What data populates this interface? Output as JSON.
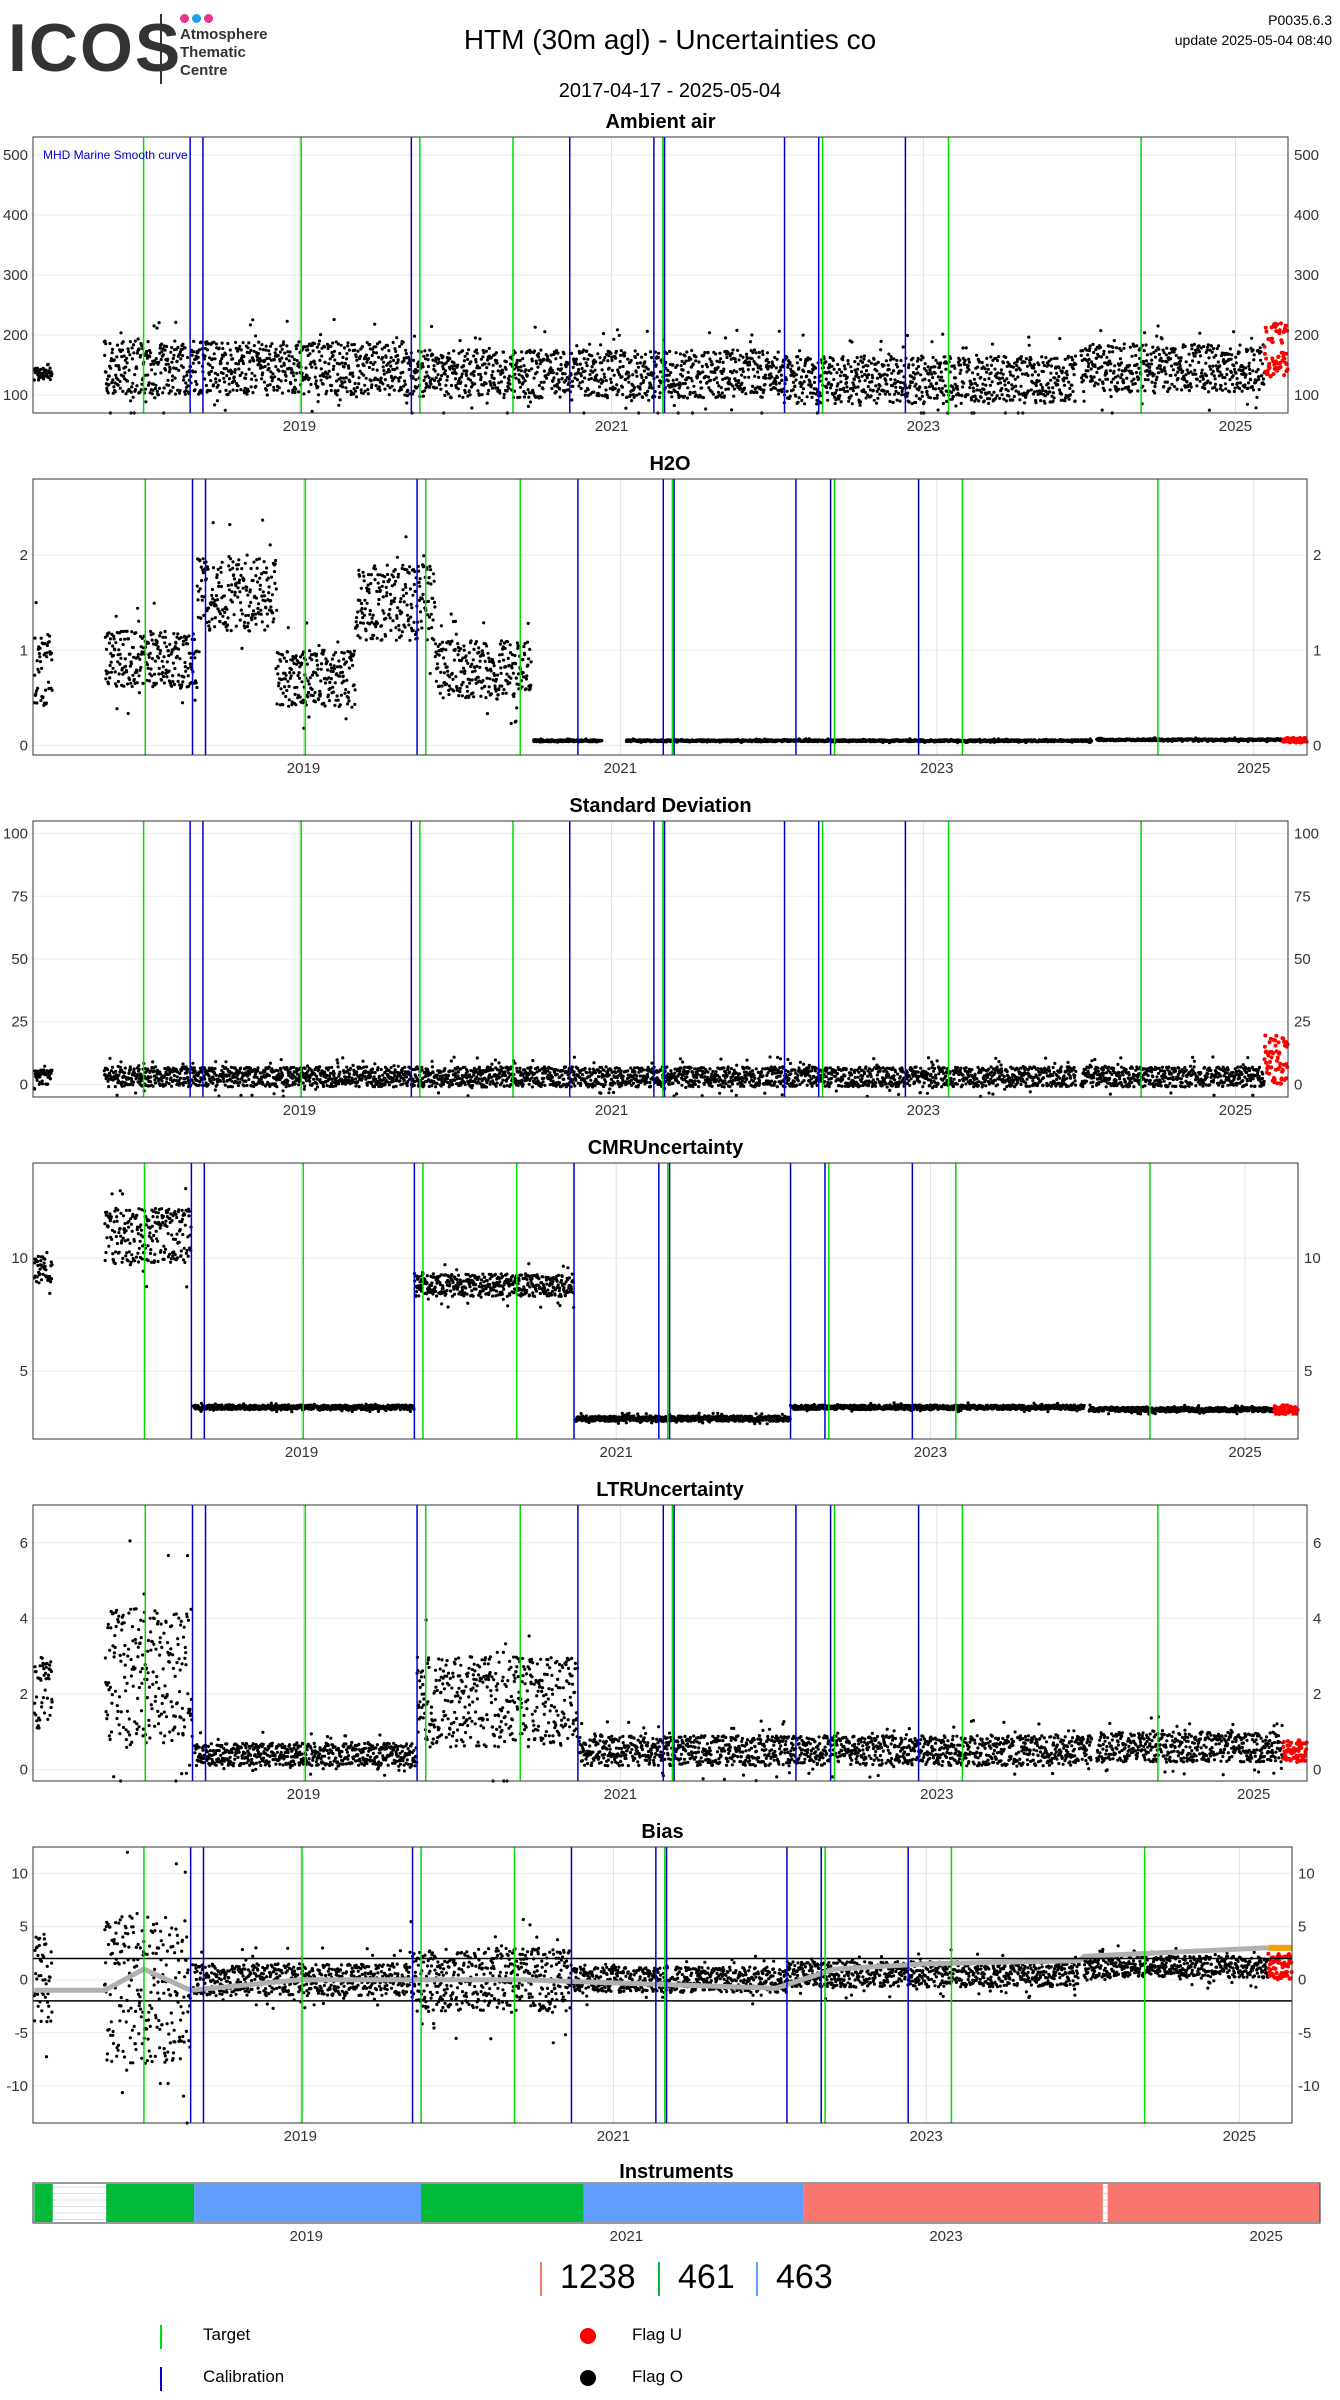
{
  "logo": {
    "word": "ICOS",
    "line1": "Atmosphere",
    "line2": "Thematic",
    "line3": "Centre",
    "dot_colors": [
      "#e8368f",
      "#1aa3e8",
      "#e8368f"
    ]
  },
  "header": {
    "title": "HTM  (30m agl) - Uncertainties co",
    "dates": "2017-04-17 - 2025-05-04",
    "version": "P0035.6.3",
    "update": "update  2025-05-04 08:40"
  },
  "colors": {
    "target": "#00dd00",
    "calibration": "#0000cc",
    "flag_u": "#ff0000",
    "flag_o": "#000000",
    "smooth": "#b0b0b0",
    "flag_u_smooth": "#f0a000",
    "inst_red": "#f8766d",
    "inst_green": "#00ba38",
    "inst_blue": "#619cff"
  },
  "chart_data": {
    "type": "scatter",
    "x_ticks": [
      "2019",
      "2021",
      "2023",
      "2025"
    ],
    "x_range": [
      "2017-04-17",
      "2025-05-04"
    ],
    "target_dates": [
      "2018-01-01",
      "2019-01-05",
      "2019-10-10",
      "2020-05-15",
      "2021-05-01",
      "2022-05-10",
      "2023-03-01",
      "2024-05-25"
    ],
    "calibration_dates": [
      "2018-04-20",
      "2018-05-20",
      "2019-09-20",
      "2020-09-25",
      "2021-04-10",
      "2021-05-05",
      "2022-02-10",
      "2022-05-01",
      "2022-11-20"
    ],
    "panels": [
      {
        "title": "Ambient air",
        "ylim": [
          70,
          530
        ],
        "yticks": [
          100,
          200,
          300,
          400,
          500
        ],
        "annotation": "MHD Marine Smooth curve",
        "segments": [
          {
            "from": "2017-04-20",
            "to": "2017-06-01",
            "base": 135,
            "amp": 10
          },
          {
            "from": "2017-10-01",
            "to": "2019-09-10",
            "base": 145,
            "amp": 45
          },
          {
            "from": "2019-09-10",
            "to": "2022-02-01",
            "base": 135,
            "amp": 40
          },
          {
            "from": "2022-02-01",
            "to": "2023-12-25",
            "base": 125,
            "amp": 40
          },
          {
            "from": "2024-01-05",
            "to": "2025-03-10",
            "base": 145,
            "amp": 40
          }
        ],
        "flag_u": {
          "from": "2025-03-10",
          "to": "2025-05-04",
          "low": 130,
          "high": 220
        }
      },
      {
        "title": "H2O",
        "ylim": [
          -0.1,
          2.8
        ],
        "yticks": [
          0,
          1,
          2
        ],
        "segments": [
          {
            "from": "2017-04-20",
            "to": "2017-06-01",
            "base": 0.8,
            "amp": 0.4
          },
          {
            "from": "2017-10-01",
            "to": "2018-05-01",
            "base": 0.9,
            "amp": 0.3
          },
          {
            "from": "2018-05-01",
            "to": "2018-11-01",
            "base": 1.6,
            "amp": 0.4
          },
          {
            "from": "2018-11-01",
            "to": "2019-05-01",
            "base": 0.7,
            "amp": 0.3
          },
          {
            "from": "2019-05-01",
            "to": "2019-11-01",
            "base": 1.5,
            "amp": 0.4
          },
          {
            "from": "2019-11-01",
            "to": "2020-06-10",
            "base": 0.8,
            "amp": 0.3
          },
          {
            "from": "2020-06-15",
            "to": "2020-11-20",
            "base": 0.05,
            "amp": 0.01
          },
          {
            "from": "2021-01-15",
            "to": "2023-12-25",
            "base": 0.05,
            "amp": 0.01
          },
          {
            "from": "2024-01-05",
            "to": "2025-03-10",
            "base": 0.06,
            "amp": 0.01
          }
        ],
        "flag_u": {
          "from": "2025-03-10",
          "to": "2025-05-04",
          "low": 0.03,
          "high": 0.08
        }
      },
      {
        "title": "Standard Deviation",
        "ylim": [
          -5,
          105
        ],
        "yticks": [
          0,
          25,
          50,
          75,
          100
        ],
        "segments": [
          {
            "from": "2017-04-20",
            "to": "2017-06-01",
            "base": 3,
            "amp": 3
          },
          {
            "from": "2017-10-01",
            "to": "2023-12-25",
            "base": 3,
            "amp": 4
          },
          {
            "from": "2024-01-05",
            "to": "2025-03-10",
            "base": 3,
            "amp": 4
          }
        ],
        "flag_u": {
          "from": "2025-03-10",
          "to": "2025-05-04",
          "low": 0,
          "high": 20
        }
      },
      {
        "title": "CMRUncertainty",
        "ylim": [
          2,
          14.2
        ],
        "yticks": [
          5,
          10
        ],
        "segments": [
          {
            "from": "2017-04-20",
            "to": "2017-06-01",
            "base": 9.5,
            "amp": 0.6
          },
          {
            "from": "2017-10-01",
            "to": "2018-04-20",
            "base": 11,
            "amp": 1.2
          },
          {
            "from": "2018-04-25",
            "to": "2019-09-20",
            "base": 3.4,
            "amp": 0.1
          },
          {
            "from": "2019-09-20",
            "to": "2020-09-25",
            "base": 8.8,
            "amp": 0.5
          },
          {
            "from": "2020-09-28",
            "to": "2022-02-10",
            "base": 2.9,
            "amp": 0.12
          },
          {
            "from": "2022-02-10",
            "to": "2023-12-25",
            "base": 3.4,
            "amp": 0.1
          },
          {
            "from": "2024-01-05",
            "to": "2025-03-10",
            "base": 3.3,
            "amp": 0.1
          }
        ],
        "flag_u": {
          "from": "2025-03-10",
          "to": "2025-05-04",
          "low": 3.1,
          "high": 3.5
        }
      },
      {
        "title": "LTRUncertainty",
        "ylim": [
          -0.3,
          7
        ],
        "yticks": [
          0,
          2,
          4,
          6
        ],
        "segments": [
          {
            "from": "2017-04-20",
            "to": "2017-06-01",
            "base": 2,
            "amp": 1
          },
          {
            "from": "2017-10-01",
            "to": "2018-04-20",
            "base": 2.5,
            "amp": 1.8
          },
          {
            "from": "2018-04-25",
            "to": "2019-09-20",
            "base": 0.4,
            "amp": 0.3
          },
          {
            "from": "2019-09-20",
            "to": "2020-09-25",
            "base": 1.8,
            "amp": 1.2
          },
          {
            "from": "2020-09-28",
            "to": "2023-12-25",
            "base": 0.5,
            "amp": 0.4
          },
          {
            "from": "2024-01-05",
            "to": "2025-03-10",
            "base": 0.6,
            "amp": 0.4
          }
        ],
        "flag_u": {
          "from": "2025-03-10",
          "to": "2025-05-04",
          "low": 0.2,
          "high": 0.8
        }
      },
      {
        "title": "Bias",
        "ylim": [
          -13.5,
          12.5
        ],
        "yticks": [
          -10,
          -5,
          0,
          5,
          10
        ],
        "hlines": [
          -2,
          2
        ],
        "segments": [
          {
            "from": "2017-04-20",
            "to": "2017-06-01",
            "base": 0,
            "amp": 4
          },
          {
            "from": "2017-10-01",
            "to": "2018-04-20",
            "base": -1,
            "amp": 7
          },
          {
            "from": "2018-04-25",
            "to": "2019-09-10",
            "base": 0,
            "amp": 1.5
          },
          {
            "from": "2019-09-10",
            "to": "2020-09-25",
            "base": 0,
            "amp": 3
          },
          {
            "from": "2020-09-28",
            "to": "2022-02-10",
            "base": 0,
            "amp": 1.2
          },
          {
            "from": "2022-02-10",
            "to": "2023-12-25",
            "base": 0.5,
            "amp": 1.2
          },
          {
            "from": "2024-01-05",
            "to": "2025-03-10",
            "base": 1.2,
            "amp": 1
          }
        ],
        "smooth": [
          {
            "x": "2017-04-20",
            "y": -1
          },
          {
            "x": "2017-10-01",
            "y": -1
          },
          {
            "x": "2018-01-01",
            "y": 1
          },
          {
            "x": "2018-04-20",
            "y": -1
          },
          {
            "x": "2019-01-01",
            "y": 0
          },
          {
            "x": "2019-09-20",
            "y": 0
          },
          {
            "x": "2020-06-01",
            "y": 0
          },
          {
            "x": "2021-06-01",
            "y": -0.5
          },
          {
            "x": "2022-01-15",
            "y": -0.8
          },
          {
            "x": "2022-06-01",
            "y": 1
          },
          {
            "x": "2023-01-01",
            "y": 1.5
          },
          {
            "x": "2023-12-25",
            "y": 1.8
          },
          {
            "x": "2024-01-05",
            "y": 2.2
          },
          {
            "x": "2025-03-10",
            "y": 3
          }
        ],
        "flag_u": {
          "from": "2025-03-10",
          "to": "2025-05-04",
          "low": 0,
          "high": 2.5
        }
      }
    ],
    "instruments": {
      "title": "Instruments",
      "bands": [
        {
          "from": "2017-04-20",
          "to": "2017-06-01",
          "color": "#00ba38"
        },
        {
          "from": "2017-10-01",
          "to": "2018-04-20",
          "color": "#00ba38"
        },
        {
          "from": "2018-04-20",
          "to": "2019-09-20",
          "color": "#619cff"
        },
        {
          "from": "2019-09-20",
          "to": "2020-09-25",
          "color": "#00ba38"
        },
        {
          "from": "2020-09-25",
          "to": "2022-02-10",
          "color": "#619cff"
        },
        {
          "from": "2022-02-10",
          "to": "2023-12-25",
          "color": "#f8766d"
        },
        {
          "from": "2024-01-05",
          "to": "2025-05-04",
          "color": "#f8766d"
        }
      ]
    }
  },
  "counts": [
    {
      "value": "1238",
      "color": "#f8766d"
    },
    {
      "value": "461",
      "color": "#00ba38"
    },
    {
      "value": "463",
      "color": "#619cff"
    }
  ],
  "legend": {
    "target": "Target",
    "calibration": "Calibration",
    "flag_u": "Flag U",
    "flag_o": "Flag O"
  }
}
